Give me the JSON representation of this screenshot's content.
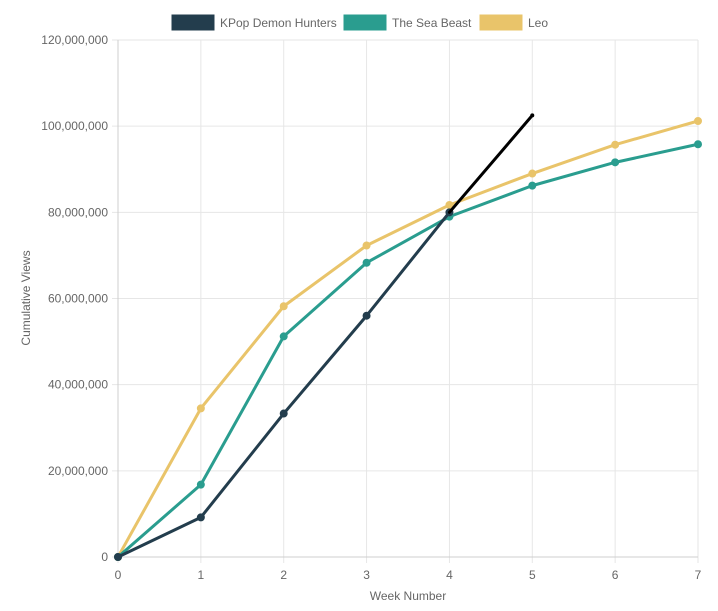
{
  "chart_data": {
    "type": "line",
    "title": "",
    "xlabel": "Week Number",
    "ylabel": "Cumulative Views",
    "x": [
      0,
      1,
      2,
      3,
      4,
      5,
      6,
      7
    ],
    "xlim": [
      0,
      7
    ],
    "ylim": [
      0,
      120000000
    ],
    "y_ticks": [
      0,
      20000000,
      40000000,
      60000000,
      80000000,
      100000000,
      120000000
    ],
    "y_tick_labels": [
      "0",
      "20,000,000",
      "40,000,000",
      "60,000,000",
      "80,000,000",
      "100,000,000",
      "120,000,000"
    ],
    "x_tick_labels": [
      "0",
      "1",
      "2",
      "3",
      "4",
      "5",
      "6",
      "7"
    ],
    "grid": true,
    "legend_position": "top-center",
    "series": [
      {
        "name": "KPop Demon Hunters",
        "color": "#233d4d",
        "x": [
          0,
          1,
          2,
          3,
          4
        ],
        "values": [
          0,
          9200000,
          33300000,
          56000000,
          80000000
        ]
      },
      {
        "name": "The Sea Beast",
        "color": "#2a9d8f",
        "x": [
          0,
          1,
          2,
          3,
          4,
          5,
          6,
          7
        ],
        "values": [
          0,
          16800000,
          51200000,
          68300000,
          79000000,
          86200000,
          91600000,
          95800000
        ]
      },
      {
        "name": "Leo",
        "color": "#e9c46a",
        "x": [
          0,
          1,
          2,
          3,
          4,
          5,
          6,
          7
        ],
        "values": [
          0,
          34500000,
          58200000,
          72300000,
          81700000,
          89000000,
          95700000,
          101200000
        ]
      }
    ],
    "annotations": [
      {
        "type": "line",
        "color": "#000000",
        "from": {
          "x": 4,
          "y": 80000000
        },
        "to": {
          "x": 5,
          "y": 102500000
        }
      }
    ]
  }
}
